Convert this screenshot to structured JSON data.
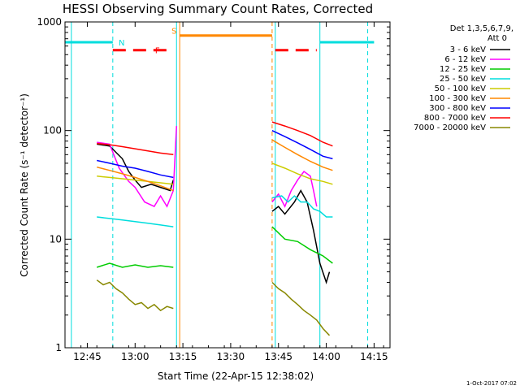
{
  "chart_data": {
    "type": "line",
    "title": "HESSI Observing Summary Count Rates, Corrected",
    "xlabel": "Start Time (22-Apr-15 12:38:02)",
    "ylabel": "Corrected Count Rate (s⁻¹ detector⁻¹)",
    "y_scale": "log",
    "ylim": [
      1,
      1000
    ],
    "xlim": [
      "12:38",
      "14:20"
    ],
    "x_ticks": [
      "12:45",
      "13:00",
      "13:15",
      "13:30",
      "13:45",
      "14:00",
      "14:15"
    ],
    "y_ticks": [
      "1",
      "10",
      "100",
      "1000"
    ],
    "legend_header": [
      "Det 1,3,5,6,7,9,",
      "Att 0"
    ],
    "legend_position": "right",
    "footer_date": "1-Oct-2017 07:02",
    "series": [
      {
        "name": "3 - 6 keV",
        "color": "#000000",
        "segments": [
          [
            [
              "12:48",
              75
            ],
            [
              "12:52",
              72
            ],
            [
              "12:56",
              55
            ],
            [
              "12:58",
              42
            ],
            [
              "13:00",
              35
            ],
            [
              "13:02",
              30
            ],
            [
              "13:05",
              32
            ],
            [
              "13:08",
              30
            ],
            [
              "13:11",
              28
            ],
            [
              "13:12",
              35
            ]
          ],
          [
            [
              "13:43",
              18
            ],
            [
              "13:45",
              20
            ],
            [
              "13:47",
              17
            ],
            [
              "13:50",
              22
            ],
            [
              "13:52",
              28
            ],
            [
              "13:54",
              22
            ],
            [
              "13:56",
              12
            ],
            [
              "13:58",
              6
            ],
            [
              "14:00",
              4
            ],
            [
              "14:01",
              5
            ]
          ]
        ]
      },
      {
        "name": "6 - 12 keV",
        "color": "#ff00ff",
        "segments": [
          [
            [
              "12:48",
              78
            ],
            [
              "12:52",
              75
            ],
            [
              "12:55",
              45
            ],
            [
              "12:58",
              34
            ],
            [
              "13:00",
              30
            ],
            [
              "13:03",
              22
            ],
            [
              "13:06",
              20
            ],
            [
              "13:08",
              25
            ],
            [
              "13:10",
              20
            ],
            [
              "13:12",
              28
            ],
            [
              "13:13",
              110
            ]
          ],
          [
            [
              "13:43",
              22
            ],
            [
              "13:45",
              26
            ],
            [
              "13:47",
              20
            ],
            [
              "13:49",
              28
            ],
            [
              "13:51",
              35
            ],
            [
              "13:53",
              42
            ],
            [
              "13:55",
              38
            ],
            [
              "13:56",
              28
            ],
            [
              "13:57",
              20
            ]
          ]
        ]
      },
      {
        "name": "12 - 25 keV",
        "color": "#00cc00",
        "segments": [
          [
            [
              "12:48",
              5.5
            ],
            [
              "12:52",
              6.0
            ],
            [
              "12:56",
              5.5
            ],
            [
              "13:00",
              5.8
            ],
            [
              "13:04",
              5.5
            ],
            [
              "13:08",
              5.7
            ],
            [
              "13:12",
              5.5
            ]
          ],
          [
            [
              "13:43",
              13
            ],
            [
              "13:47",
              10
            ],
            [
              "13:51",
              9.5
            ],
            [
              "13:55",
              8
            ],
            [
              "13:59",
              7
            ],
            [
              "14:02",
              6
            ]
          ]
        ]
      },
      {
        "name": "25 - 50 keV",
        "color": "#00dddd",
        "segments": [
          [
            [
              "12:48",
              16
            ],
            [
              "12:52",
              15.5
            ],
            [
              "12:56",
              15
            ],
            [
              "13:00",
              14.5
            ],
            [
              "13:04",
              14
            ],
            [
              "13:08",
              13.5
            ],
            [
              "13:12",
              13
            ]
          ],
          [
            [
              "13:43",
              24
            ],
            [
              "13:46",
              25
            ],
            [
              "13:48",
              22
            ],
            [
              "13:50",
              25
            ],
            [
              "13:52",
              22
            ],
            [
              "13:54",
              22
            ],
            [
              "13:56",
              19
            ],
            [
              "13:58",
              18
            ],
            [
              "14:00",
              16
            ],
            [
              "14:02",
              16
            ]
          ]
        ]
      },
      {
        "name": "50 - 100 keV",
        "color": "#cccc00",
        "segments": [
          [
            [
              "12:48",
              38
            ],
            [
              "12:52",
              37
            ],
            [
              "12:56",
              36
            ],
            [
              "13:00",
              35
            ],
            [
              "13:04",
              34
            ],
            [
              "13:08",
              33
            ],
            [
              "13:12",
              32
            ]
          ],
          [
            [
              "13:43",
              50
            ],
            [
              "13:47",
              45
            ],
            [
              "13:51",
              40
            ],
            [
              "13:55",
              36
            ],
            [
              "13:59",
              34
            ],
            [
              "14:02",
              32
            ]
          ]
        ]
      },
      {
        "name": "100 - 300 keV",
        "color": "#ff8800",
        "segments": [
          [
            [
              "12:48",
              46
            ],
            [
              "12:52",
              43
            ],
            [
              "12:56",
              40
            ],
            [
              "13:00",
              37
            ],
            [
              "13:04",
              34
            ],
            [
              "13:08",
              31
            ],
            [
              "13:12",
              28
            ]
          ],
          [
            [
              "13:43",
              82
            ],
            [
              "13:47",
              70
            ],
            [
              "13:51",
              60
            ],
            [
              "13:55",
              52
            ],
            [
              "13:59",
              46
            ],
            [
              "14:02",
              43
            ]
          ]
        ]
      },
      {
        "name": "300 - 800 keV",
        "color": "#0000ff",
        "segments": [
          [
            [
              "12:48",
              53
            ],
            [
              "12:52",
              50
            ],
            [
              "12:56",
              47
            ],
            [
              "13:00",
              45
            ],
            [
              "13:04",
              42
            ],
            [
              "13:08",
              39
            ],
            [
              "13:12",
              37
            ]
          ],
          [
            [
              "13:43",
              100
            ],
            [
              "13:47",
              88
            ],
            [
              "13:51",
              77
            ],
            [
              "13:55",
              67
            ],
            [
              "13:59",
              58
            ],
            [
              "14:02",
              55
            ]
          ]
        ]
      },
      {
        "name": "800 - 7000 keV",
        "color": "#ff0000",
        "segments": [
          [
            [
              "12:48",
              76
            ],
            [
              "12:52",
              74
            ],
            [
              "12:56",
              71
            ],
            [
              "13:00",
              68
            ],
            [
              "13:04",
              65
            ],
            [
              "13:08",
              62
            ],
            [
              "13:12",
              60
            ]
          ],
          [
            [
              "13:43",
              120
            ],
            [
              "13:47",
              110
            ],
            [
              "13:51",
              100
            ],
            [
              "13:55",
              90
            ],
            [
              "13:59",
              78
            ],
            [
              "14:02",
              72
            ]
          ]
        ]
      },
      {
        "name": "7000 - 20000 keV",
        "color": "#888800",
        "segments": [
          [
            [
              "12:48",
              4.2
            ],
            [
              "12:50",
              3.8
            ],
            [
              "12:52",
              4.0
            ],
            [
              "12:54",
              3.5
            ],
            [
              "12:56",
              3.2
            ],
            [
              "12:58",
              2.8
            ],
            [
              "13:00",
              2.5
            ],
            [
              "13:02",
              2.6
            ],
            [
              "13:04",
              2.3
            ],
            [
              "13:06",
              2.5
            ],
            [
              "13:08",
              2.2
            ],
            [
              "13:10",
              2.4
            ],
            [
              "13:12",
              2.3
            ]
          ],
          [
            [
              "13:43",
              4.0
            ],
            [
              "13:45",
              3.5
            ],
            [
              "13:47",
              3.2
            ],
            [
              "13:49",
              2.8
            ],
            [
              "13:51",
              2.5
            ],
            [
              "13:53",
              2.2
            ],
            [
              "13:55",
              2.0
            ],
            [
              "13:57",
              1.8
            ],
            [
              "13:59",
              1.5
            ],
            [
              "14:01",
              1.3
            ]
          ]
        ]
      }
    ],
    "flags": [
      {
        "label": "N",
        "color": "#00dddd",
        "spans": [
          [
            "12:38",
            "12:53"
          ],
          [
            "13:58",
            "14:15"
          ]
        ],
        "level": 650
      },
      {
        "label": "F",
        "color": "#ff0000",
        "spans": [
          [
            "12:53",
            "13:11"
          ],
          [
            "13:44",
            "13:57"
          ]
        ],
        "level": 550,
        "dashed": true
      },
      {
        "label": "S",
        "color": "#ff8800",
        "spans": [
          [
            "13:14",
            "13:43"
          ]
        ],
        "level": 750
      }
    ],
    "vertical_markers": [
      {
        "x": "12:40",
        "color": "#00dddd",
        "style": "solid"
      },
      {
        "x": "12:53",
        "color": "#00dddd",
        "style": "dashed"
      },
      {
        "x": "13:13",
        "color": "#00dddd",
        "style": "solid"
      },
      {
        "x": "13:14",
        "color": "#ff8800",
        "style": "solid"
      },
      {
        "x": "13:43",
        "color": "#ff8800",
        "style": "dashed"
      },
      {
        "x": "13:44",
        "color": "#00dddd",
        "style": "solid"
      },
      {
        "x": "13:58",
        "color": "#00dddd",
        "style": "solid"
      },
      {
        "x": "14:13",
        "color": "#00dddd",
        "style": "dashed"
      }
    ]
  }
}
